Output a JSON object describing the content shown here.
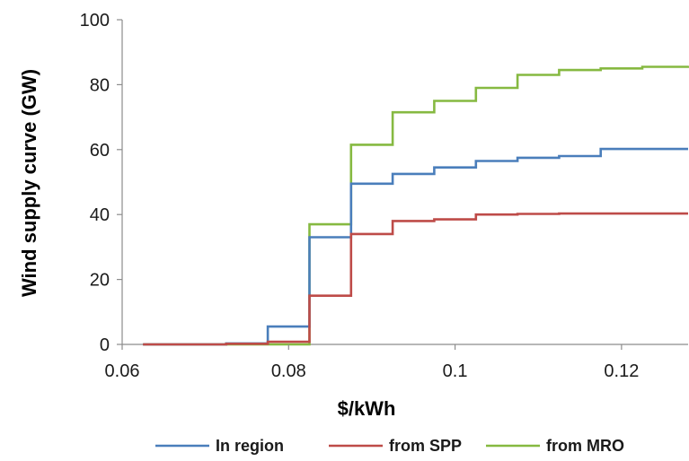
{
  "chart_data": {
    "type": "line",
    "step": true,
    "title": "",
    "xlabel": "$/kWh",
    "ylabel": "Wind supply curve (GW)",
    "xlim": [
      0.06,
      0.128
    ],
    "ylim": [
      0,
      100
    ],
    "x_ticks": [
      0.06,
      0.08,
      0.1,
      0.12
    ],
    "x_tick_labels": [
      "0.06",
      "0.08",
      "0.1",
      "0.12"
    ],
    "y_ticks": [
      0,
      20,
      40,
      60,
      80,
      100
    ],
    "y_tick_labels": [
      "0",
      "20",
      "40",
      "60",
      "80",
      "100"
    ],
    "grid": false,
    "legend_position": "bottom",
    "series": [
      {
        "name": "In region",
        "color": "#4a7ebb",
        "x": [
          0.0625,
          0.0725,
          0.0775,
          0.0825,
          0.0875,
          0.0925,
          0.0975,
          0.1025,
          0.1075,
          0.1125,
          0.1175,
          0.1225,
          0.128
        ],
        "y": [
          0,
          0.3,
          5.5,
          33,
          49.5,
          52.5,
          54.5,
          56.5,
          57.5,
          58,
          60.2,
          60.2,
          60.2
        ]
      },
      {
        "name": "from SPP",
        "color": "#be4b48",
        "x": [
          0.0625,
          0.0725,
          0.0775,
          0.0825,
          0.0875,
          0.0925,
          0.0975,
          0.1025,
          0.1075,
          0.1125,
          0.1175,
          0.1225,
          0.128
        ],
        "y": [
          0,
          0.2,
          0.8,
          15,
          34,
          38,
          38.5,
          40,
          40.2,
          40.3,
          40.3,
          40.3,
          40.3
        ]
      },
      {
        "name": "from MRO",
        "color": "#86b941",
        "x": [
          0.0625,
          0.0725,
          0.0775,
          0.0825,
          0.0875,
          0.0925,
          0.0975,
          0.1025,
          0.1075,
          0.1125,
          0.1175,
          0.1225,
          0.128
        ],
        "y": [
          0,
          0,
          0,
          37,
          61.5,
          71.5,
          75,
          79,
          83,
          84.5,
          85,
          85.5,
          85.8
        ]
      }
    ]
  }
}
